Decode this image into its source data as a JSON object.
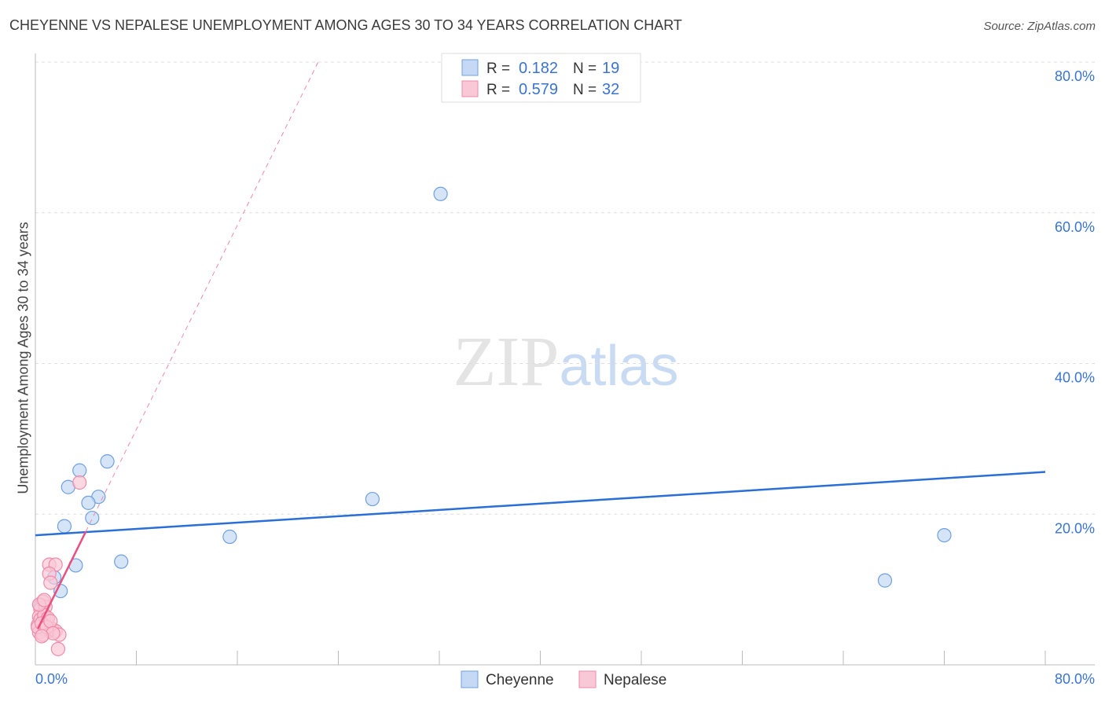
{
  "title": "CHEYENNE VS NEPALESE UNEMPLOYMENT AMONG AGES 30 TO 34 YEARS CORRELATION CHART",
  "source": "Source: ZipAtlas.com",
  "watermark": "ZIPatlas",
  "chart_data": {
    "type": "scatter",
    "title": "CHEYENNE VS NEPALESE UNEMPLOYMENT AMONG AGES 30 TO 34 YEARS CORRELATION CHART",
    "xlabel": "",
    "ylabel": "Unemployment Among Ages 30 to 34 years",
    "xlim": [
      0,
      80
    ],
    "ylim": [
      0,
      80
    ],
    "x_tick_labels": [
      "0.0%",
      "80.0%"
    ],
    "y_tick_labels": [
      "20.0%",
      "40.0%",
      "60.0%",
      "80.0%"
    ],
    "y_ticks": [
      20,
      40,
      60,
      80
    ],
    "grid": true,
    "legend_placement": "top-center",
    "series": [
      {
        "name": "Cheyenne",
        "color": "#6fa0e0",
        "fill": "#c5d9f5",
        "line_color": "#2a6fd6",
        "R": "0.182",
        "N": "19",
        "trend": [
          [
            0,
            17.2
          ],
          [
            80,
            25.6
          ]
        ],
        "points": [
          [
            32.1,
            62.5
          ],
          [
            5.7,
            27.0
          ],
          [
            3.5,
            25.8
          ],
          [
            2.6,
            23.6
          ],
          [
            5.0,
            22.3
          ],
          [
            4.2,
            21.5
          ],
          [
            4.5,
            19.5
          ],
          [
            2.3,
            18.4
          ],
          [
            15.4,
            17.0
          ],
          [
            26.7,
            22.0
          ],
          [
            3.2,
            13.2
          ],
          [
            6.8,
            13.7
          ],
          [
            1.5,
            11.6
          ],
          [
            2.0,
            9.8
          ],
          [
            67.3,
            11.2
          ],
          [
            72.0,
            17.2
          ],
          [
            0.4,
            7.9
          ],
          [
            0.6,
            5.8
          ],
          [
            1.1,
            4.5
          ]
        ]
      },
      {
        "name": "Nepalese",
        "color": "#f08aa8",
        "fill": "#f9c8d6",
        "line_color": "#e8507e",
        "R": "0.579",
        "N": "32",
        "trend": [
          [
            0.2,
            4.8
          ],
          [
            4.0,
            17.7
          ]
        ],
        "trend_dashed": [
          [
            4.0,
            17.7
          ],
          [
            22.4,
            80
          ]
        ],
        "points": [
          [
            3.5,
            24.2
          ],
          [
            1.1,
            13.3
          ],
          [
            1.6,
            13.3
          ],
          [
            1.1,
            12.1
          ],
          [
            1.2,
            10.9
          ],
          [
            0.6,
            8.4
          ],
          [
            0.4,
            7.4
          ],
          [
            0.8,
            7.7
          ],
          [
            0.3,
            6.4
          ],
          [
            0.6,
            5.8
          ],
          [
            0.9,
            6.0
          ],
          [
            0.2,
            5.3
          ],
          [
            0.5,
            4.8
          ],
          [
            0.8,
            5.3
          ],
          [
            1.1,
            4.5
          ],
          [
            1.3,
            4.8
          ],
          [
            1.6,
            4.5
          ],
          [
            1.9,
            4.0
          ],
          [
            0.3,
            4.3
          ],
          [
            0.6,
            4.0
          ],
          [
            1.8,
            2.1
          ],
          [
            0.4,
            6.0
          ],
          [
            0.7,
            6.6
          ],
          [
            1.0,
            6.2
          ],
          [
            0.2,
            5.0
          ],
          [
            0.5,
            5.5
          ],
          [
            0.9,
            5.0
          ],
          [
            1.2,
            5.8
          ],
          [
            0.3,
            8.0
          ],
          [
            0.7,
            8.6
          ],
          [
            1.4,
            4.2
          ],
          [
            0.5,
            3.8
          ]
        ]
      }
    ]
  }
}
